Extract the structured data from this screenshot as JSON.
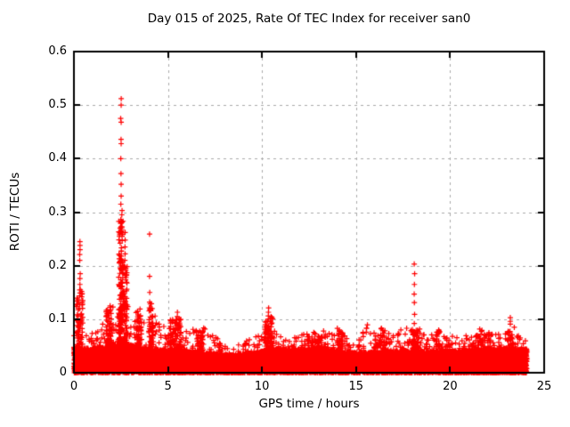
{
  "chart_data": {
    "type": "scatter",
    "title": "Day 015 of 2025, Rate Of TEC Index for receiver san0",
    "xlabel": "GPS time / hours",
    "ylabel": "ROTI / TECUs",
    "xlim": [
      0,
      25
    ],
    "ylim": [
      0,
      0.6
    ],
    "xticks": [
      0,
      5,
      10,
      15,
      20,
      25
    ],
    "xtick_labels": [
      "0",
      "5",
      "10",
      "15",
      "20",
      "25"
    ],
    "yticks": [
      0,
      0.1,
      0.2,
      0.3,
      0.4,
      0.5,
      0.6
    ],
    "ytick_labels": [
      "0",
      "0.1",
      "0.2",
      "0.3",
      "0.4",
      "0.5",
      "0.6"
    ],
    "grid": true,
    "legend": "none",
    "marker": "plus",
    "marker_color": "#ff0000",
    "grid_color": "#aaaaaa",
    "axis_color": "#000000",
    "background_color": "#ffffff",
    "data_t_range": [
      0,
      24.08
    ],
    "seed": 20250115,
    "base_band": [
      [
        0,
        0.048
      ],
      [
        1,
        0.045
      ],
      [
        2,
        0.05
      ],
      [
        2.6,
        0.055
      ],
      [
        4,
        0.045
      ],
      [
        6,
        0.04
      ],
      [
        8,
        0.034
      ],
      [
        9.5,
        0.036
      ],
      [
        10.5,
        0.045
      ],
      [
        13,
        0.045
      ],
      [
        15,
        0.038
      ],
      [
        17,
        0.04
      ],
      [
        19,
        0.04
      ],
      [
        21,
        0.042
      ],
      [
        23,
        0.046
      ],
      [
        24.1,
        0.045
      ]
    ],
    "noise_envelope": [
      [
        0,
        0.07
      ],
      [
        0.3,
        0.11
      ],
      [
        0.8,
        0.075
      ],
      [
        1.5,
        0.09
      ],
      [
        1.9,
        0.13
      ],
      [
        2.2,
        0.12
      ],
      [
        2.5,
        0.21
      ],
      [
        2.8,
        0.16
      ],
      [
        3.1,
        0.1
      ],
      [
        3.5,
        0.125
      ],
      [
        4.1,
        0.12
      ],
      [
        4.6,
        0.09
      ],
      [
        5.1,
        0.1
      ],
      [
        5.5,
        0.11
      ],
      [
        5.9,
        0.08
      ],
      [
        6.4,
        0.085
      ],
      [
        6.9,
        0.085
      ],
      [
        7.4,
        0.07
      ],
      [
        8,
        0.055
      ],
      [
        8.6,
        0.05
      ],
      [
        9.2,
        0.06
      ],
      [
        9.8,
        0.07
      ],
      [
        10.35,
        0.115
      ],
      [
        10.8,
        0.08
      ],
      [
        11.3,
        0.06
      ],
      [
        12,
        0.07
      ],
      [
        12.6,
        0.075
      ],
      [
        13.1,
        0.08
      ],
      [
        13.6,
        0.075
      ],
      [
        14.1,
        0.085
      ],
      [
        14.6,
        0.06
      ],
      [
        15.1,
        0.06
      ],
      [
        15.6,
        0.09
      ],
      [
        16,
        0.07
      ],
      [
        16.5,
        0.09
      ],
      [
        17,
        0.072
      ],
      [
        17.6,
        0.085
      ],
      [
        18.1,
        0.09
      ],
      [
        18.6,
        0.08
      ],
      [
        19.1,
        0.07
      ],
      [
        19.4,
        0.085
      ],
      [
        20,
        0.068
      ],
      [
        20.6,
        0.072
      ],
      [
        21.2,
        0.078
      ],
      [
        21.8,
        0.085
      ],
      [
        22.3,
        0.072
      ],
      [
        22.8,
        0.078
      ],
      [
        23.2,
        0.1
      ],
      [
        23.6,
        0.072
      ],
      [
        24.08,
        0.065
      ]
    ],
    "column_fills": [
      {
        "t": 0.3,
        "hw": 0.18,
        "vmin": 0.04,
        "vmax": 0.155,
        "n": 60
      },
      {
        "t": 1.85,
        "hw": 0.15,
        "vmin": 0.04,
        "vmax": 0.125,
        "n": 60
      },
      {
        "t": 2.5,
        "hw": 0.12,
        "vmin": 0.04,
        "vmax": 0.3,
        "n": 170
      },
      {
        "t": 2.75,
        "hw": 0.08,
        "vmin": 0.04,
        "vmax": 0.2,
        "n": 60
      },
      {
        "t": 3.45,
        "hw": 0.15,
        "vmin": 0.04,
        "vmax": 0.115,
        "n": 60
      },
      {
        "t": 4.1,
        "hw": 0.12,
        "vmin": 0.04,
        "vmax": 0.13,
        "n": 60
      },
      {
        "t": 5.4,
        "hw": 0.3,
        "vmin": 0.03,
        "vmax": 0.1,
        "n": 80
      },
      {
        "t": 6.7,
        "hw": 0.2,
        "vmin": 0.03,
        "vmax": 0.08,
        "n": 50
      },
      {
        "t": 10.35,
        "hw": 0.22,
        "vmin": 0.03,
        "vmax": 0.105,
        "n": 90
      },
      {
        "t": 12.9,
        "hw": 0.5,
        "vmin": 0.03,
        "vmax": 0.068,
        "n": 80
      },
      {
        "t": 14.15,
        "hw": 0.15,
        "vmin": 0.03,
        "vmax": 0.08,
        "n": 40
      },
      {
        "t": 16.3,
        "hw": 0.35,
        "vmin": 0.03,
        "vmax": 0.075,
        "n": 60
      },
      {
        "t": 18.15,
        "hw": 0.2,
        "vmin": 0.03,
        "vmax": 0.082,
        "n": 70
      },
      {
        "t": 19.35,
        "hw": 0.12,
        "vmin": 0.03,
        "vmax": 0.08,
        "n": 30
      },
      {
        "t": 21.8,
        "hw": 0.4,
        "vmin": 0.03,
        "vmax": 0.072,
        "n": 70
      },
      {
        "t": 23.2,
        "hw": 0.12,
        "vmin": 0.03,
        "vmax": 0.09,
        "n": 35
      }
    ],
    "spikes": [
      {
        "t": 0.32,
        "values": [
          0.245,
          0.238,
          0.23,
          0.221,
          0.21,
          0.185,
          0.176,
          0.165
        ]
      },
      {
        "t": 0.42,
        "values": [
          0.152,
          0.147,
          0.142,
          0.128,
          0.11,
          0.1
        ]
      },
      {
        "t": 2.5,
        "values": [
          0.512,
          0.5,
          0.475,
          0.468,
          0.436,
          0.428,
          0.4,
          0.372,
          0.352,
          0.33,
          0.315
        ]
      },
      {
        "t": 2.56,
        "values": [
          0.303,
          0.295,
          0.281,
          0.268,
          0.255
        ]
      },
      {
        "t": 2.72,
        "values": [
          0.262,
          0.248,
          0.235,
          0.222,
          0.21
        ]
      },
      {
        "t": 4.02,
        "values": [
          0.259,
          0.18,
          0.15,
          0.132
        ]
      },
      {
        "t": 5.5,
        "values": [
          0.113,
          0.105
        ]
      },
      {
        "t": 10.35,
        "values": [
          0.121,
          0.113,
          0.106
        ]
      },
      {
        "t": 18.1,
        "values": [
          0.203,
          0.185,
          0.165,
          0.147,
          0.131,
          0.109,
          0.092
        ]
      },
      {
        "t": 23.2,
        "values": [
          0.103,
          0.096
        ]
      }
    ]
  }
}
